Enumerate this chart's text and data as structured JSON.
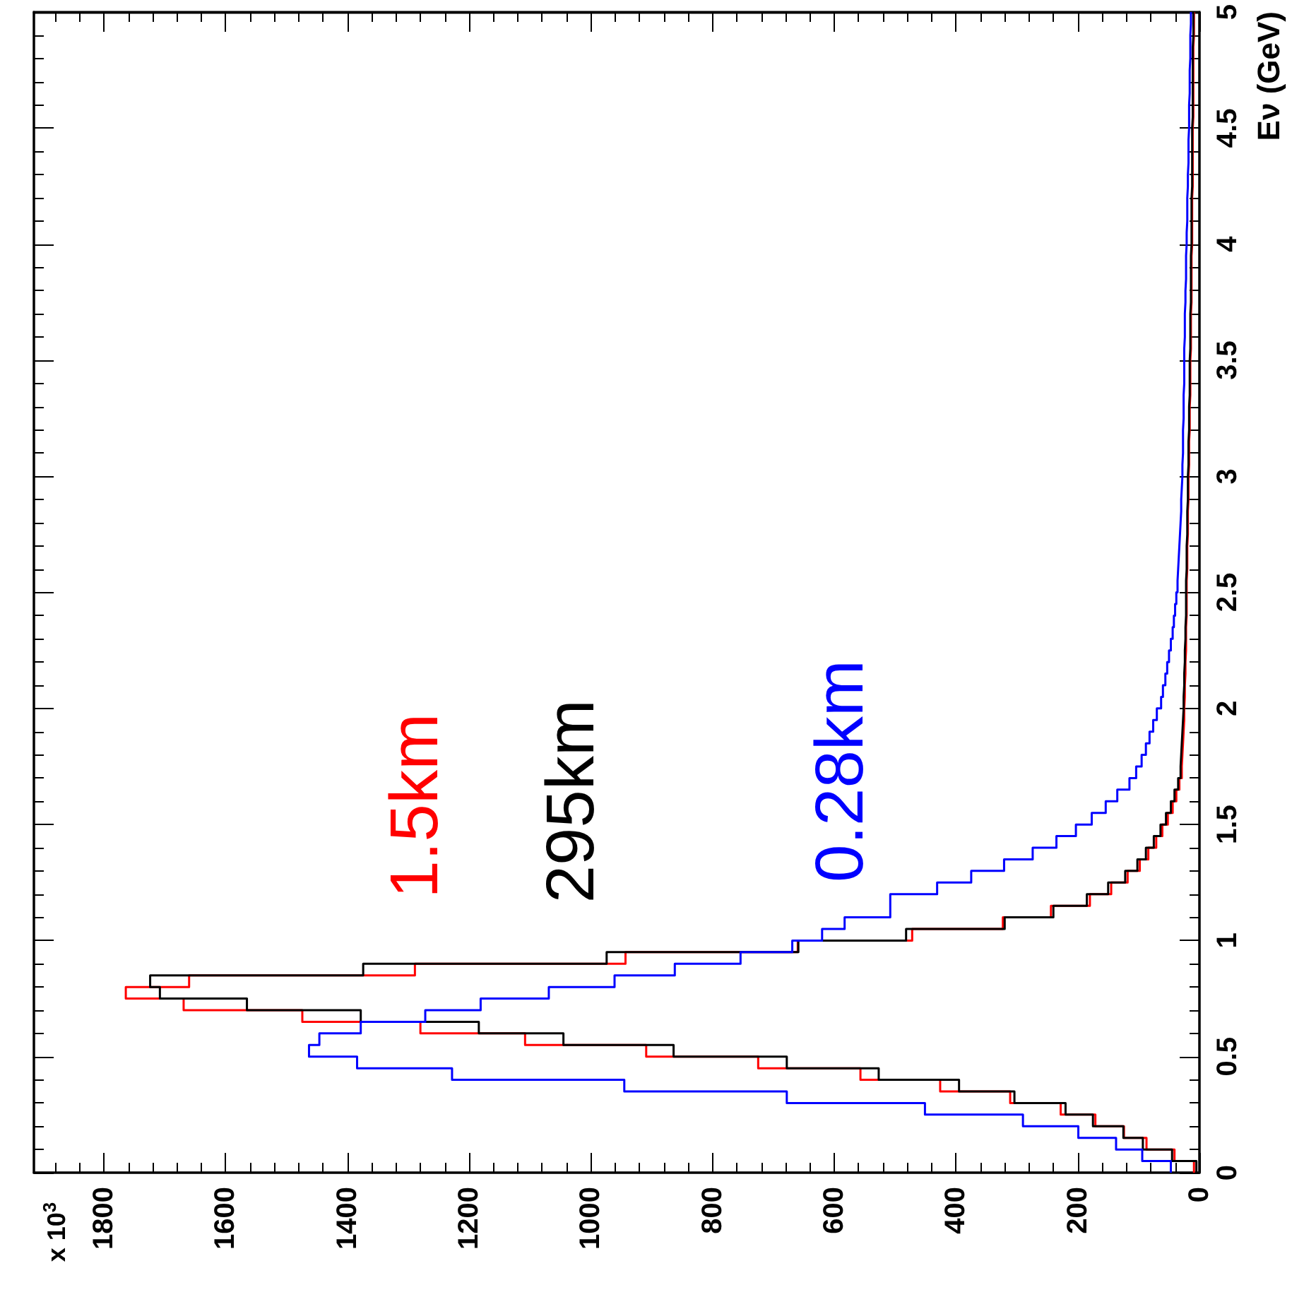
{
  "chart_data": {
    "type": "histogram",
    "orientation": "horizontal",
    "ylabel": "Eν (GeV)",
    "annotations": [
      "x 10$^{3}$"
    ],
    "bins": [
      0,
      0.05,
      0.1,
      0.15,
      0.2,
      0.25,
      0.3,
      0.35,
      0.4,
      0.45,
      0.5,
      0.55,
      0.6,
      0.65,
      0.7,
      0.75,
      0.8,
      0.85,
      0.9,
      0.95,
      1,
      1.05,
      1.1,
      1.15,
      1.2,
      1.25,
      1.3,
      1.35,
      1.4,
      1.45,
      1.5,
      1.55,
      1.6,
      1.65,
      1.7,
      1.75,
      1.8,
      1.85,
      1.9,
      1.95,
      2,
      2.05,
      2.1,
      2.15,
      2.2,
      2.25,
      2.3,
      2.35,
      2.4,
      2.45,
      2.5,
      2.55,
      2.6,
      2.65,
      2.7,
      2.75,
      2.8,
      2.85,
      2.9,
      2.95,
      3,
      3.05,
      3.1,
      3.15,
      3.2,
      3.25,
      3.3,
      3.35,
      3.4,
      3.45,
      3.5,
      3.55,
      3.6,
      3.65,
      3.7,
      3.75,
      3.8,
      3.85,
      3.9,
      3.95,
      4,
      4.05,
      4.1,
      4.15,
      4.2,
      4.25,
      4.3,
      4.35,
      4.4,
      4.45,
      4.5,
      4.55,
      4.6,
      4.65,
      4.7,
      4.75,
      4.8,
      4.85,
      4.9,
      4.95,
      5
    ],
    "series": [
      {
        "name": "1.5km",
        "color": "#ff0000",
        "values": [
          9,
          41,
          87,
          124,
          171,
          228,
          311,
          426,
          557,
          725,
          909,
          1108,
          1280,
          1474,
          1669,
          1764,
          1660,
          1289,
          943,
          660,
          472,
          323,
          244,
          180,
          145,
          118,
          98,
          84,
          71,
          61,
          52,
          44,
          38,
          33,
          29,
          28,
          27,
          26,
          25,
          25,
          24,
          24,
          23,
          23,
          22,
          22,
          22,
          21,
          21,
          21,
          21,
          20,
          20,
          20,
          19,
          19,
          19,
          18,
          18,
          18,
          17,
          17,
          17,
          16,
          16,
          16,
          15,
          15,
          15,
          15,
          14,
          14,
          14,
          14,
          13,
          13,
          13,
          13,
          13,
          12,
          12,
          12,
          12,
          12,
          11,
          11,
          11,
          11,
          11,
          11,
          10,
          10,
          10,
          10,
          10,
          10,
          10,
          9,
          9,
          9
        ]
      },
      {
        "name": "295km",
        "color": "#000000",
        "values": [
          5,
          45,
          93,
          125,
          175,
          220,
          304,
          395,
          527,
          678,
          864,
          1045,
          1184,
          1378,
          1565,
          1708,
          1724,
          1374,
          974,
          659,
          482,
          320,
          240,
          185,
          150,
          122,
          102,
          88,
          75,
          64,
          55,
          47,
          41,
          35,
          31,
          30,
          29,
          28,
          27,
          26,
          26,
          25,
          25,
          24,
          24,
          23,
          23,
          22,
          22,
          22,
          22,
          21,
          21,
          21,
          20,
          20,
          20,
          19,
          19,
          19,
          18,
          18,
          18,
          17,
          17,
          17,
          16,
          16,
          16,
          16,
          15,
          15,
          15,
          15,
          14,
          14,
          14,
          14,
          14,
          13,
          13,
          13,
          13,
          13,
          12,
          12,
          12,
          12,
          12,
          12,
          11,
          11,
          11,
          11,
          11,
          11,
          11,
          10,
          10,
          10
        ]
      },
      {
        "name": "0.28km",
        "color": "#0000ff",
        "values": [
          47,
          94,
          137,
          199,
          290,
          451,
          678,
          945,
          1228,
          1384,
          1463,
          1446,
          1378,
          1272,
          1181,
          1069,
          961,
          862,
          754,
          669,
          620,
          583,
          508,
          508,
          431,
          375,
          321,
          274,
          235,
          203,
          177,
          154,
          135,
          115,
          104,
          95,
          88,
          82,
          76,
          70,
          63,
          60,
          56,
          53,
          50,
          47,
          44,
          42,
          40,
          38,
          36,
          35,
          34,
          33,
          32,
          31,
          30,
          30,
          29,
          28,
          28,
          27,
          27,
          27,
          26,
          26,
          26,
          25,
          25,
          25,
          25,
          24,
          24,
          24,
          23,
          23,
          22,
          22,
          22,
          21,
          21,
          20,
          20,
          20,
          19,
          19,
          18,
          18,
          18,
          17,
          17,
          17,
          16,
          16,
          16,
          15,
          15,
          15,
          14,
          14
        ]
      }
    ],
    "xlim": [
      1915,
      0
    ],
    "xticks": [
      0,
      200,
      400,
      600,
      800,
      1000,
      1200,
      1400,
      1600,
      1800
    ],
    "ylim": [
      0,
      5
    ],
    "yticks": [
      0,
      0.5,
      1,
      1.5,
      2,
      2.5,
      3,
      3.5,
      4,
      4.5,
      5
    ]
  }
}
